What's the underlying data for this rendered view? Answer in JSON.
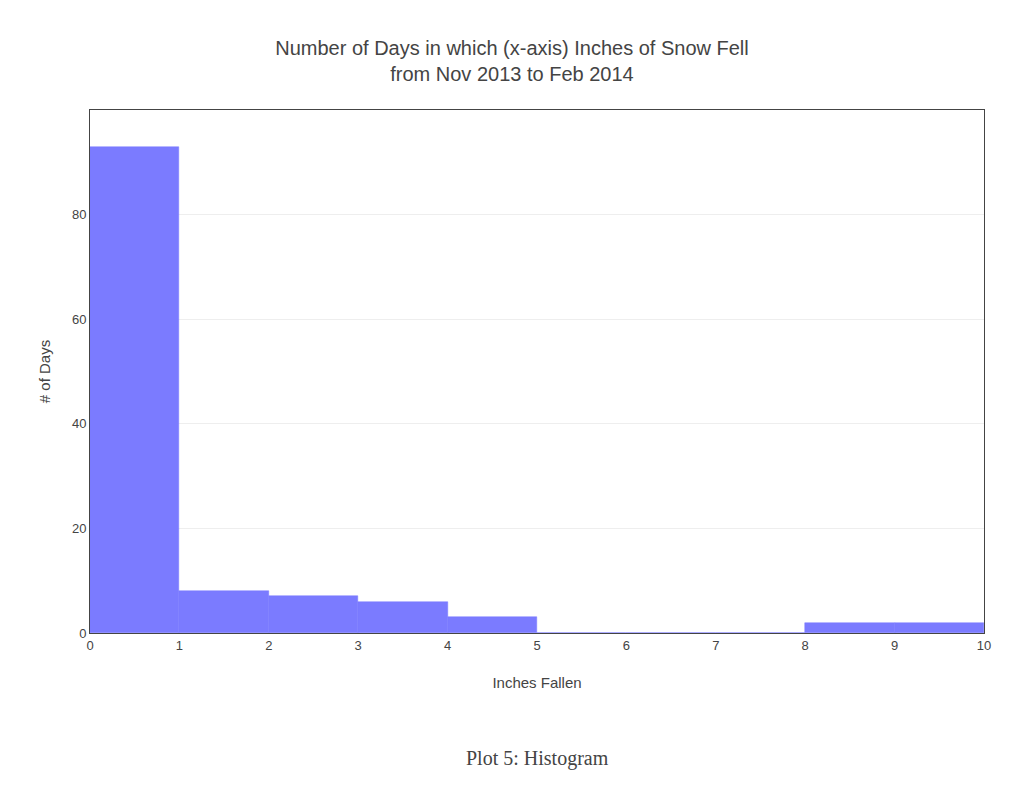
{
  "chart_data": {
    "type": "histogram",
    "title": "Number of Days in which (x-axis) Inches of Snow Fell\nfrom Nov 2013 to Feb 2014",
    "x_label": "Inches Fallen",
    "y_label": "# of Days",
    "annotations": [
      "Plot 5: Histogram"
    ],
    "bins": [
      0,
      1,
      2,
      3,
      4,
      5,
      6,
      7,
      8,
      9,
      10
    ],
    "values": [
      93,
      8,
      7,
      6,
      3,
      0,
      0,
      0,
      2,
      2
    ],
    "color": "#7b7bff",
    "xlim": [
      0,
      10
    ],
    "ylim": [
      0,
      100
    ],
    "xticks": [
      0,
      1,
      2,
      3,
      4,
      5,
      6,
      7,
      8,
      9,
      10
    ],
    "yticks": [
      0,
      20,
      40,
      60,
      80
    ],
    "grid": "y"
  }
}
